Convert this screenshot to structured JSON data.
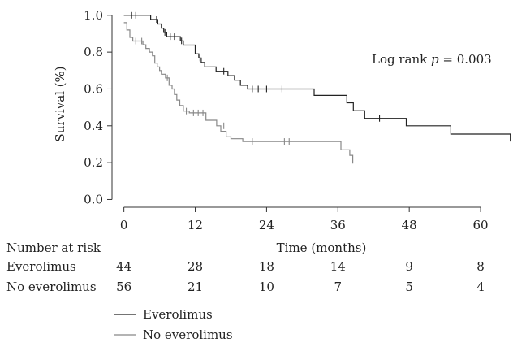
{
  "chart_data": {
    "type": "line",
    "xlabel": "Time (months)",
    "ylabel": "Survival (%)",
    "xlim": [
      -2,
      66
    ],
    "ylim": [
      -0.02,
      1.03
    ],
    "x_ticks": [
      0,
      12,
      24,
      36,
      48,
      60
    ],
    "y_ticks": [
      0.0,
      0.2,
      0.4,
      0.6,
      0.8,
      1.0
    ],
    "y_tick_labels": [
      "0.0",
      "0.2",
      "0.4",
      "0.6",
      "0.8",
      "1.0"
    ],
    "grid": false,
    "legend_position": "bottom-left",
    "annotation": {
      "prefix": "Log rank ",
      "italic": "p",
      "suffix": " = 0.003"
    },
    "series": [
      {
        "name": "Everolimus",
        "color": "#222222",
        "steps": [
          [
            0,
            1.0
          ],
          [
            4.5,
            0.977
          ],
          [
            5.7,
            0.953
          ],
          [
            6.3,
            0.93
          ],
          [
            6.7,
            0.907
          ],
          [
            7.2,
            0.884
          ],
          [
            9.5,
            0.861
          ],
          [
            10.0,
            0.838
          ],
          [
            12.0,
            0.791
          ],
          [
            12.6,
            0.768
          ],
          [
            13.0,
            0.744
          ],
          [
            13.6,
            0.72
          ],
          [
            15.5,
            0.696
          ],
          [
            17.5,
            0.672
          ],
          [
            18.6,
            0.648
          ],
          [
            19.6,
            0.62
          ],
          [
            20.8,
            0.6
          ],
          [
            32.0,
            0.565
          ],
          [
            37.5,
            0.525
          ],
          [
            38.6,
            0.482
          ],
          [
            40.5,
            0.44
          ],
          [
            47.5,
            0.4
          ],
          [
            55.0,
            0.355
          ],
          [
            65.0,
            0.315
          ]
        ],
        "end_x": 65.0,
        "censored": [
          [
            1.3,
            1.0
          ],
          [
            2.0,
            1.0
          ],
          [
            5.5,
            0.977
          ],
          [
            6.9,
            0.907
          ],
          [
            7.8,
            0.884
          ],
          [
            8.5,
            0.884
          ],
          [
            9.7,
            0.861
          ],
          [
            12.8,
            0.768
          ],
          [
            16.8,
            0.696
          ],
          [
            21.6,
            0.6
          ],
          [
            22.6,
            0.6
          ],
          [
            24.0,
            0.6
          ],
          [
            26.6,
            0.6
          ],
          [
            43.0,
            0.44
          ]
        ]
      },
      {
        "name": "No everolimus",
        "color": "#888888",
        "steps": [
          [
            0,
            0.96
          ],
          [
            0.5,
            0.92
          ],
          [
            1.0,
            0.88
          ],
          [
            1.5,
            0.86
          ],
          [
            3.2,
            0.84
          ],
          [
            3.7,
            0.82
          ],
          [
            4.3,
            0.8
          ],
          [
            4.8,
            0.78
          ],
          [
            5.2,
            0.74
          ],
          [
            5.6,
            0.72
          ],
          [
            6.0,
            0.7
          ],
          [
            6.3,
            0.68
          ],
          [
            7.0,
            0.66
          ],
          [
            7.6,
            0.62
          ],
          [
            8.1,
            0.6
          ],
          [
            8.5,
            0.57
          ],
          [
            8.9,
            0.54
          ],
          [
            9.4,
            0.51
          ],
          [
            10.0,
            0.48
          ],
          [
            11.0,
            0.47
          ],
          [
            13.8,
            0.43
          ],
          [
            15.6,
            0.4
          ],
          [
            16.3,
            0.37
          ],
          [
            17.2,
            0.34
          ],
          [
            18.0,
            0.33
          ],
          [
            20.0,
            0.315
          ],
          [
            36.5,
            0.27
          ],
          [
            38.0,
            0.24
          ],
          [
            38.5,
            0.195
          ]
        ],
        "end_x": 38.5,
        "censored": [
          [
            2.0,
            0.86
          ],
          [
            3.0,
            0.86
          ],
          [
            7.3,
            0.66
          ],
          [
            10.5,
            0.48
          ],
          [
            11.7,
            0.47
          ],
          [
            12.5,
            0.47
          ],
          [
            13.3,
            0.47
          ],
          [
            16.8,
            0.4
          ],
          [
            21.6,
            0.315
          ],
          [
            27.0,
            0.315
          ],
          [
            27.8,
            0.315
          ]
        ]
      }
    ],
    "risk_table": {
      "header": "Number at risk",
      "times": [
        0,
        12,
        24,
        36,
        48,
        60
      ],
      "rows": [
        {
          "label": "Everolimus",
          "counts": [
            "44",
            "28",
            "18",
            "14",
            "9",
            "8"
          ]
        },
        {
          "label": "No everolimus",
          "counts": [
            "56",
            "21",
            "10",
            "7",
            "5",
            "4"
          ]
        }
      ]
    }
  }
}
